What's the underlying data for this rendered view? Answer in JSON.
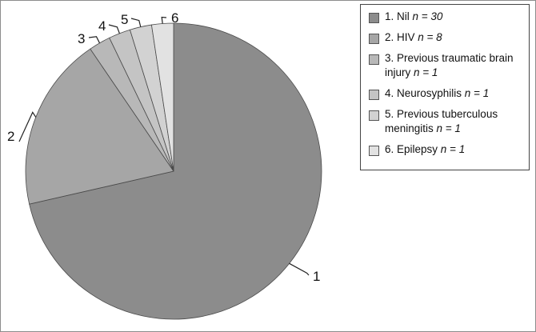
{
  "chart_data": {
    "type": "pie",
    "title": "",
    "slices": [
      {
        "label": "1",
        "legend": "1. Nil",
        "n_label": "n = 30",
        "value": 30,
        "color": "#8c8c8c"
      },
      {
        "label": "2",
        "legend": "2. HIV",
        "n_label": "n = 8",
        "value": 8,
        "color": "#a6a6a6"
      },
      {
        "label": "3",
        "legend": "3. Previous traumatic brain injury",
        "n_label": "n = 1",
        "value": 1,
        "color": "#b8b8b8"
      },
      {
        "label": "4",
        "legend": "4. Neurosyphilis",
        "n_label": "n = 1",
        "value": 1,
        "color": "#c4c4c4"
      },
      {
        "label": "5",
        "legend": "5. Previous tuberculous meningitis",
        "n_label": "n = 1",
        "value": 1,
        "color": "#d2d2d2"
      },
      {
        "label": "6",
        "legend": "6. Epilepsy",
        "n_label": "n = 1",
        "value": 1,
        "color": "#e2e2e2"
      }
    ],
    "legend_position": "top-right",
    "start": "12 o'clock",
    "direction": "clockwise"
  }
}
